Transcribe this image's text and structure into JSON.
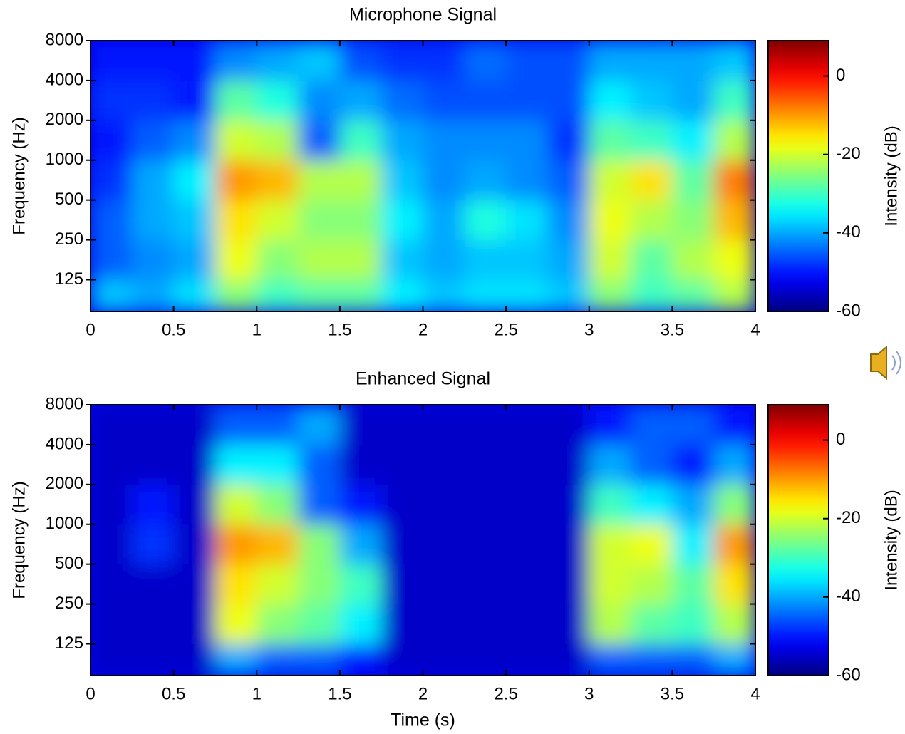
{
  "chart_data": [
    {
      "type": "heatmap",
      "title": "Microphone Signal",
      "ylabel": "Frequency (Hz)",
      "colorbar_label": "Intensity (dB)",
      "colormap": "jet",
      "yscale": "log",
      "xlim": [
        0,
        4
      ],
      "xticks": [
        0,
        0.5,
        1,
        1.5,
        2,
        2.5,
        3,
        3.5,
        4
      ],
      "ylim": [
        72,
        8000
      ],
      "yticks": [
        125,
        250,
        500,
        1000,
        2000,
        4000,
        8000
      ],
      "clim": [
        -60,
        9
      ],
      "cticks": [
        0,
        -20,
        -40,
        -60
      ],
      "x_edges": [
        0,
        0.25,
        0.5,
        0.75,
        1,
        1.25,
        1.5,
        1.75,
        2,
        2.25,
        2.5,
        2.75,
        3,
        3.25,
        3.5,
        3.75,
        4
      ],
      "y_edges": [
        72,
        125,
        250,
        500,
        1000,
        2000,
        4000,
        8000
      ],
      "z": [
        [
          -38,
          -40,
          -36,
          -25,
          -30,
          -28,
          -28,
          -35,
          -38,
          -36,
          -36,
          -38,
          -25,
          -30,
          -28,
          -22
        ],
        [
          -45,
          -42,
          -40,
          -18,
          -25,
          -22,
          -22,
          -38,
          -40,
          -38,
          -38,
          -40,
          -20,
          -28,
          -22,
          -18
        ],
        [
          -45,
          -40,
          -38,
          -15,
          -20,
          -25,
          -25,
          -35,
          -40,
          -32,
          -36,
          -42,
          -18,
          -22,
          -25,
          -12
        ],
        [
          -48,
          -40,
          -35,
          -10,
          -12,
          -22,
          -22,
          -38,
          -42,
          -40,
          -42,
          -45,
          -20,
          -15,
          -28,
          -8
        ],
        [
          -50,
          -45,
          -42,
          -20,
          -22,
          -45,
          -30,
          -40,
          -42,
          -42,
          -42,
          -48,
          -28,
          -30,
          -35,
          -22
        ],
        [
          -48,
          -48,
          -50,
          -28,
          -32,
          -42,
          -40,
          -44,
          -46,
          -46,
          -46,
          -46,
          -35,
          -38,
          -40,
          -30
        ],
        [
          -50,
          -50,
          -50,
          -42,
          -40,
          -38,
          -46,
          -48,
          -48,
          -44,
          -46,
          -46,
          -40,
          -40,
          -40,
          -38
        ]
      ]
    },
    {
      "type": "heatmap",
      "title": "Enhanced Signal",
      "xlabel": "Time (s)",
      "ylabel": "Frequency (Hz)",
      "colorbar_label": "Intensity (dB)",
      "colormap": "jet",
      "yscale": "log",
      "xlim": [
        0,
        4
      ],
      "xticks": [
        0,
        0.5,
        1,
        1.5,
        2,
        2.5,
        3,
        3.5,
        4
      ],
      "ylim": [
        72,
        8000
      ],
      "yticks": [
        125,
        250,
        500,
        1000,
        2000,
        4000,
        8000
      ],
      "clim": [
        -60,
        9
      ],
      "cticks": [
        0,
        -20,
        -40,
        -60
      ],
      "x_edges": [
        0,
        0.25,
        0.5,
        0.75,
        1,
        1.25,
        1.5,
        1.75,
        2,
        2.25,
        2.5,
        2.75,
        3,
        3.25,
        3.5,
        3.75,
        4
      ],
      "y_edges": [
        72,
        125,
        250,
        500,
        1000,
        2000,
        4000,
        8000
      ],
      "z": [
        [
          -55,
          -55,
          -55,
          -40,
          -45,
          -45,
          -50,
          -55,
          -55,
          -55,
          -55,
          -55,
          -45,
          -45,
          -45,
          -40
        ],
        [
          -55,
          -55,
          -55,
          -18,
          -25,
          -28,
          -35,
          -55,
          -55,
          -55,
          -55,
          -55,
          -22,
          -28,
          -30,
          -22
        ],
        [
          -55,
          -55,
          -55,
          -15,
          -20,
          -25,
          -30,
          -55,
          -55,
          -55,
          -55,
          -55,
          -20,
          -22,
          -28,
          -15
        ],
        [
          -55,
          -48,
          -55,
          -10,
          -12,
          -25,
          -40,
          -55,
          -55,
          -55,
          -55,
          -55,
          -20,
          -18,
          -35,
          -10
        ],
        [
          -55,
          -50,
          -55,
          -20,
          -25,
          -45,
          -50,
          -55,
          -55,
          -55,
          -55,
          -55,
          -30,
          -35,
          -40,
          -25
        ],
        [
          -55,
          -55,
          -55,
          -35,
          -35,
          -45,
          -55,
          -55,
          -55,
          -55,
          -55,
          -55,
          -40,
          -45,
          -50,
          -40
        ],
        [
          -55,
          -55,
          -55,
          -45,
          -45,
          -40,
          -55,
          -55,
          -55,
          -55,
          -55,
          -55,
          -50,
          -45,
          -45,
          -50
        ]
      ]
    }
  ]
}
